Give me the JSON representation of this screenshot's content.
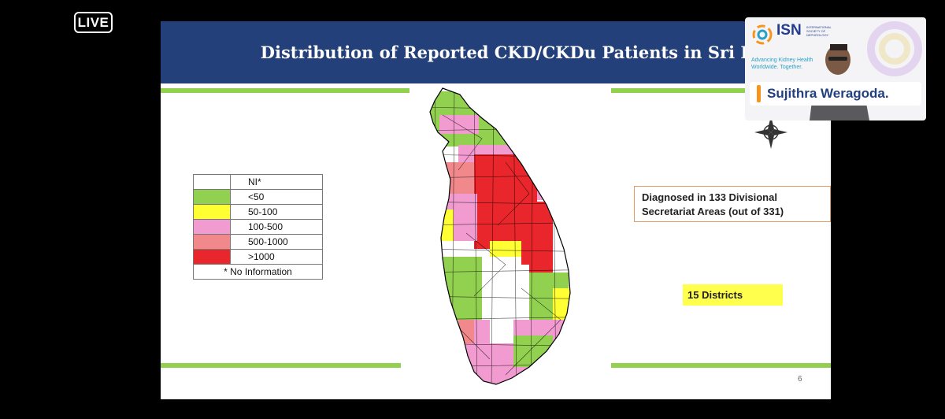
{
  "stream": {
    "live_label": "LIVE"
  },
  "slide": {
    "title": "Distribution of Reported CKD/CKDu Patients in Sri Lanka",
    "legend": {
      "items": [
        {
          "label": "NI*",
          "color": "#ffffff"
        },
        {
          "label": "<50",
          "color": "#92d050"
        },
        {
          "label": "50-100",
          "color": "#ffff33"
        },
        {
          "label": "100-500",
          "color": "#f29bd0"
        },
        {
          "label": "500-1000",
          "color": "#f0888c"
        },
        {
          "label": ">1000",
          "color": "#e8262b"
        }
      ],
      "footnote": "* No Information"
    },
    "callout": "Diagnosed in 133 Divisional Secretariat Areas (out of 331)",
    "districts_label": "15 Districts",
    "page_number": "6"
  },
  "speaker": {
    "org_name": "ISN",
    "org_fullname": "INTERNATIONAL SOCIETY OF NEPHROLOGY",
    "tagline": "Advancing Kidney Health Worldwide. Together.",
    "name": "Sujithra Weragoda."
  },
  "colors": {
    "title_bar": "#24407a",
    "accent_line": "#92d050",
    "callout_border": "#e39b65",
    "districts_bg": "#ffff4d"
  }
}
